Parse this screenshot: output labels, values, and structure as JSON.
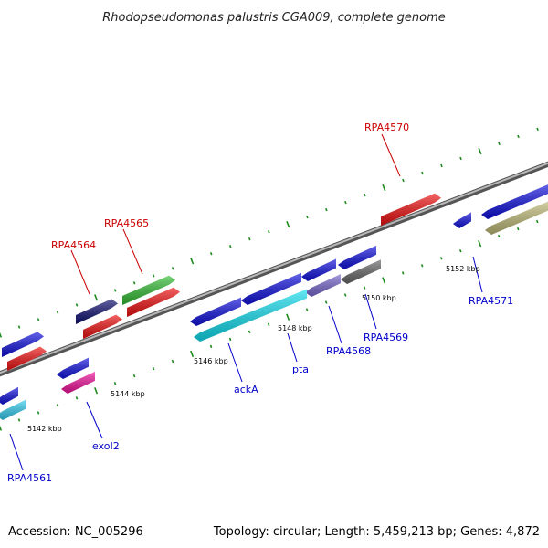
{
  "map": {
    "title": "Rhodopseudomonas palustris CGA009, complete genome",
    "accession": "Accession: NC_005296",
    "summary": "Topology: circular; Length: 5,459,213 bp; Genes: 4,872"
  },
  "colors": {
    "backbone": "#8a8a8a",
    "tick": "#1f8a1f",
    "label_forward": "#cc0000",
    "label_reverse": "#0000cc"
  },
  "scale_labels": [
    "5142 kbp",
    "5144 kbp",
    "5146 kbp",
    "5148 kbp",
    "5150 kbp",
    "5152 kbp"
  ],
  "gene_labels": [
    {
      "text": "RPA4570",
      "strand": "forward"
    },
    {
      "text": "RPA4565",
      "strand": "forward"
    },
    {
      "text": "RPA4564",
      "strand": "forward"
    },
    {
      "text": "RPA4571",
      "strand": "reverse"
    },
    {
      "text": "RPA4569",
      "strand": "reverse"
    },
    {
      "text": "RPA4568",
      "strand": "reverse"
    },
    {
      "text": "pta",
      "strand": "reverse"
    },
    {
      "text": "ackA",
      "strand": "reverse"
    },
    {
      "text": "exoI2",
      "strand": "reverse"
    },
    {
      "text": "RPA4561",
      "strand": "reverse"
    }
  ]
}
